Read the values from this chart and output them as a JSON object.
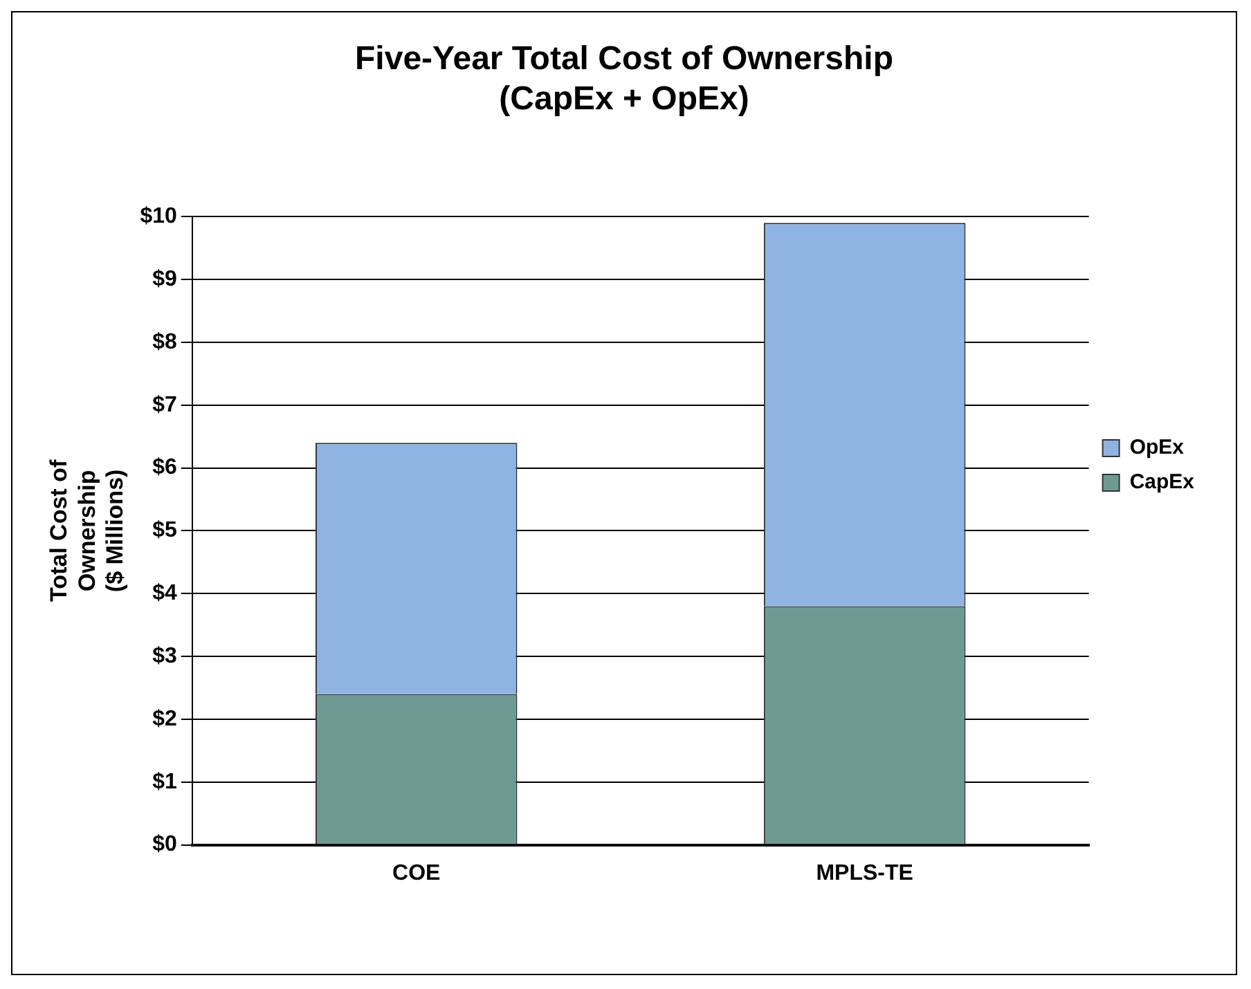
{
  "chart_data": {
    "type": "bar",
    "title": "Five-Year Total Cost of Ownership\n(CapEx + OpEx)",
    "ylabel": "Total Cost of\nOwnership\n($ Millions)",
    "categories": [
      "COE",
      "MPLS-TE"
    ],
    "series": [
      {
        "name": "CapEx",
        "color": "#6f9a94",
        "values": [
          2.4,
          3.8
        ]
      },
      {
        "name": "OpEx",
        "color": "#8fb4e3",
        "values": [
          4.0,
          6.1
        ]
      }
    ],
    "stacked": true,
    "ylim": [
      0,
      10
    ],
    "yticks": [
      {
        "value": 0,
        "label": "$0"
      },
      {
        "value": 1,
        "label": "$1"
      },
      {
        "value": 2,
        "label": "$2"
      },
      {
        "value": 3,
        "label": "$3"
      },
      {
        "value": 4,
        "label": "$4"
      },
      {
        "value": 5,
        "label": "$5"
      },
      {
        "value": 6,
        "label": "$6"
      },
      {
        "value": 7,
        "label": "$7"
      },
      {
        "value": 8,
        "label": "$8"
      },
      {
        "value": 9,
        "label": "$9"
      },
      {
        "value": 10,
        "label": "$10"
      }
    ],
    "grid": "y",
    "legend": "right"
  }
}
